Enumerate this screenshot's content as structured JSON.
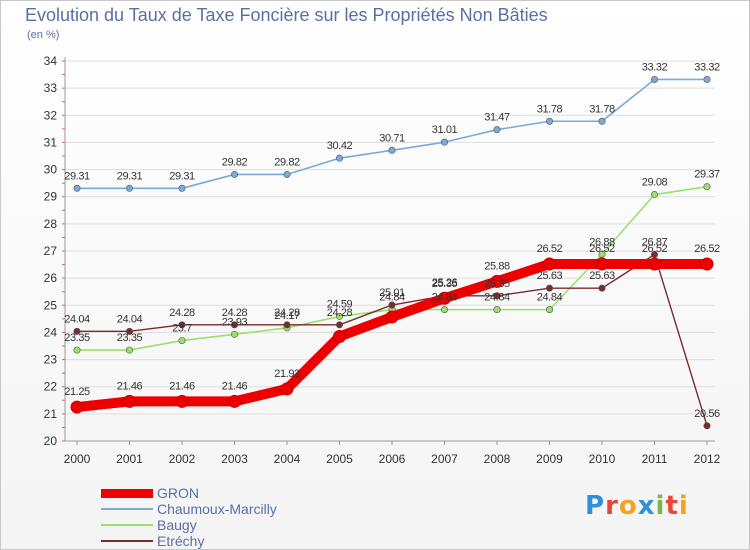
{
  "title": "Evolution du Taux de Taxe Foncière sur les Propriétés Non Bâties",
  "unit": "(en %)",
  "brand": {
    "text": "Proxiti",
    "letters": [
      {
        "ch": "P",
        "color": "#2f8fd8"
      },
      {
        "ch": "r",
        "color": "#e8463a"
      },
      {
        "ch": "o",
        "color": "#f3a321"
      },
      {
        "ch": "x",
        "color": "#2f8fd8"
      },
      {
        "ch": "i",
        "color": "#7ab648"
      },
      {
        "ch": "t",
        "color": "#e8463a"
      },
      {
        "ch": "i",
        "color": "#f3a321"
      }
    ]
  },
  "chart_data": {
    "type": "line",
    "title": "Evolution du Taux de Taxe Foncière sur les Propriétés Non Bâties",
    "ylabel": "(en %)",
    "xlabel": "",
    "ylim": [
      20,
      34
    ],
    "yticks": [
      20,
      21,
      22,
      23,
      24,
      25,
      26,
      27,
      28,
      29,
      30,
      31,
      32,
      33,
      34
    ],
    "grid": "horizontal",
    "legend": "bottom-left",
    "categories": [
      "2000",
      "2001",
      "2002",
      "2003",
      "2004",
      "2005",
      "2006",
      "2007",
      "2008",
      "2009",
      "2010",
      "2011",
      "2012"
    ],
    "series": [
      {
        "name": "GRON",
        "color": "#ee0000",
        "values": [
          21.25,
          21.46,
          21.46,
          21.46,
          21.92,
          23.85,
          24.57,
          25.26,
          25.88,
          26.52,
          26.52,
          26.52,
          26.52
        ],
        "labels": [
          "21.25",
          "21.46",
          "21.46",
          "21.46",
          "21.92",
          "",
          "",
          "25.26",
          "25.88",
          "26.52",
          "26.52",
          "26.52",
          "26.52"
        ]
      },
      {
        "name": "Chaumoux-Marcilly",
        "color": "#7aaad8",
        "values": [
          29.31,
          29.31,
          29.31,
          29.82,
          29.82,
          30.42,
          30.71,
          31.01,
          31.47,
          31.78,
          31.78,
          33.32,
          33.32
        ],
        "labels": [
          "29.31",
          "29.31",
          "29.31",
          "29.82",
          "29.82",
          "30.42",
          "30.71",
          "31.01",
          "31.47",
          "31.78",
          "31.78",
          "33.32",
          "33.32"
        ]
      },
      {
        "name": "Baugy",
        "color": "#9be06a",
        "values": [
          23.35,
          23.35,
          23.7,
          23.93,
          24.17,
          24.59,
          24.84,
          24.84,
          24.84,
          24.84,
          26.88,
          29.08,
          29.37
        ],
        "labels": [
          "23.35",
          "23.35",
          "23.7",
          "23.93",
          "24.17",
          "24.59",
          "24.84",
          "24.84",
          "24.84",
          "24.84",
          "26.88",
          "29.08",
          "29.37"
        ]
      },
      {
        "name": "Etréchy",
        "color": "#7a2b2b",
        "values": [
          24.04,
          24.04,
          24.28,
          24.28,
          24.28,
          24.28,
          25.01,
          25.35,
          25.35,
          25.63,
          25.63,
          26.87,
          20.56
        ],
        "labels": [
          "24.04",
          "24.04",
          "24.28",
          "24.28",
          "24.28",
          "24.28",
          "25.01",
          "25.35",
          "25.35",
          "25.63",
          "25.63",
          "26.87",
          "20.56"
        ]
      }
    ]
  }
}
